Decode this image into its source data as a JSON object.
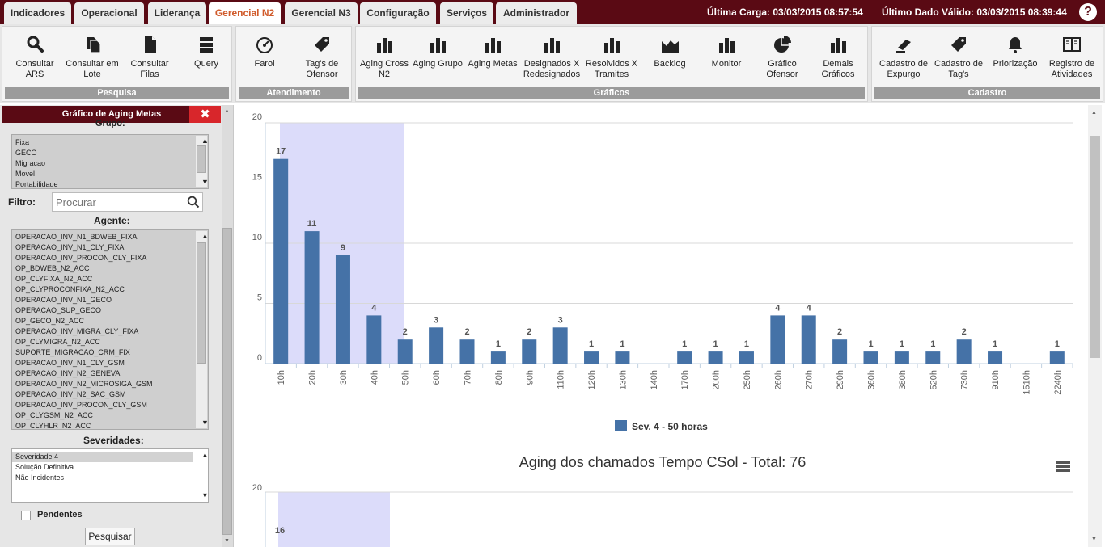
{
  "tabs": [
    {
      "label": "Indicadores",
      "active": false
    },
    {
      "label": "Operacional",
      "active": false
    },
    {
      "label": "Liderança",
      "active": false
    },
    {
      "label": "Gerencial N2",
      "active": true
    },
    {
      "label": "Gerencial N3",
      "active": false
    },
    {
      "label": "Configuração",
      "active": false
    },
    {
      "label": "Serviços",
      "active": false
    },
    {
      "label": "Administrador",
      "active": false
    }
  ],
  "header": {
    "ultima_carga": "Última Carga: 03/03/2015 08:57:54",
    "ultimo_dado": "Último Dado Válido: 03/03/2015 08:39:44",
    "help": "?"
  },
  "ribbon": {
    "pesquisa": {
      "title": "Pesquisa",
      "buttons": [
        {
          "label": "Consultar ARS",
          "icon": "search-icon"
        },
        {
          "label": "Consultar em Lote",
          "icon": "documents-icon"
        },
        {
          "label": "Consultar Filas",
          "icon": "document-icon"
        },
        {
          "label": "Query",
          "icon": "list-icon"
        }
      ]
    },
    "atendimento": {
      "title": "Atendimento",
      "buttons": [
        {
          "label": "Farol",
          "icon": "gauge-icon"
        },
        {
          "label": "Tag's de Ofensor",
          "icon": "tag-icon"
        }
      ]
    },
    "graficos": {
      "title": "Gráficos",
      "buttons": [
        {
          "label": "Aging Cross N2",
          "icon": "bar-chart-icon"
        },
        {
          "label": "Aging Grupo",
          "icon": "bar-chart-icon"
        },
        {
          "label": "Aging Metas",
          "icon": "bar-chart-icon"
        },
        {
          "label": "Designados X Redesignados",
          "icon": "bar-chart-icon"
        },
        {
          "label": "Resolvidos X Tramites",
          "icon": "bar-chart-icon"
        },
        {
          "label": "Backlog",
          "icon": "area-chart-icon"
        },
        {
          "label": "Monitor",
          "icon": "bar-chart-icon"
        },
        {
          "label": "Gráfico Ofensor",
          "icon": "pie-chart-icon"
        },
        {
          "label": "Demais Gráficos",
          "icon": "bar-chart-icon"
        }
      ]
    },
    "cadastro": {
      "title": "Cadastro",
      "buttons": [
        {
          "label": "Cadastro de Expurgo",
          "icon": "eraser-icon"
        },
        {
          "label": "Cadastro de Tag's",
          "icon": "tag-icon"
        },
        {
          "label": "Priorização",
          "icon": "bell-icon"
        },
        {
          "label": "Registro de Atividades",
          "icon": "book-icon"
        }
      ]
    }
  },
  "sidebar": {
    "title": "Gráfico de Aging Metas",
    "close": "✖",
    "grupo_label": "Grupo:",
    "grupo_items": [
      "Fixa",
      "GECO",
      "Migracao",
      "Movel",
      "Portabilidade"
    ],
    "filtro_label": "Filtro:",
    "filtro_placeholder": "Procurar",
    "agente_label": "Agente:",
    "agente_items": [
      "OPERACAO_INV_N1_BDWEB_FIXA",
      "OPERACAO_INV_N1_CLY_FIXA",
      "OPERACAO_INV_PROCON_CLY_FIXA",
      "OP_BDWEB_N2_ACC",
      "OP_CLYFIXA_N2_ACC",
      "OP_CLYPROCONFIXA_N2_ACC",
      "OPERACAO_INV_N1_GECO",
      "OPERACAO_SUP_GECO",
      "OP_GECO_N2_ACC",
      "OPERACAO_INV_MIGRA_CLY_FIXA",
      "OP_CLYMIGRA_N2_ACC",
      "SUPORTE_MIGRACAO_CRM_FIX",
      "OPERACAO_INV_N1_CLY_GSM",
      "OPERACAO_INV_N2_GENEVA",
      "OPERACAO_INV_N2_MICROSIGA_GSM",
      "OPERACAO_INV_N2_SAC_GSM",
      "OPERACAO_INV_PROCON_CLY_GSM",
      "OP_CLYGSM_N2_ACC",
      "OP_CLYHLR_N2_ACC"
    ],
    "severidades_label": "Severidades:",
    "severidade_items": [
      "Severidade 4",
      "Solução Definitiva",
      "Não Incidentes"
    ],
    "pendentes_label": "Pendentes",
    "pesquisar_label": "Pesquisar"
  },
  "colors": {
    "bar": "#4572a7",
    "band": "#dcdcfa",
    "accent": "#5a0a14",
    "close": "#d8262b"
  },
  "chart_data": [
    {
      "type": "bar",
      "categories": [
        "10h",
        "20h",
        "30h",
        "40h",
        "50h",
        "60h",
        "70h",
        "80h",
        "90h",
        "110h",
        "120h",
        "130h",
        "140h",
        "170h",
        "200h",
        "250h",
        "260h",
        "270h",
        "290h",
        "360h",
        "380h",
        "520h",
        "730h",
        "910h",
        "1510h",
        "2240h"
      ],
      "series": [
        {
          "name": "Sev. 4 - 50 horas",
          "values": [
            17,
            11,
            9,
            4,
            2,
            3,
            2,
            1,
            2,
            3,
            1,
            1,
            null,
            1,
            1,
            1,
            4,
            4,
            2,
            1,
            1,
            1,
            2,
            1,
            null,
            1
          ]
        }
      ],
      "ylim": [
        0,
        20
      ],
      "yticks": [
        0,
        5,
        10,
        15,
        20
      ],
      "title": "",
      "xlabel": "",
      "ylabel": "",
      "legend_placement": "bottom-center",
      "grid": true
    },
    {
      "type": "bar",
      "title": "Aging dos chamados Tempo CSol - Total: 76",
      "yticks": [
        20
      ],
      "visible_labels": [
        16
      ]
    }
  ]
}
